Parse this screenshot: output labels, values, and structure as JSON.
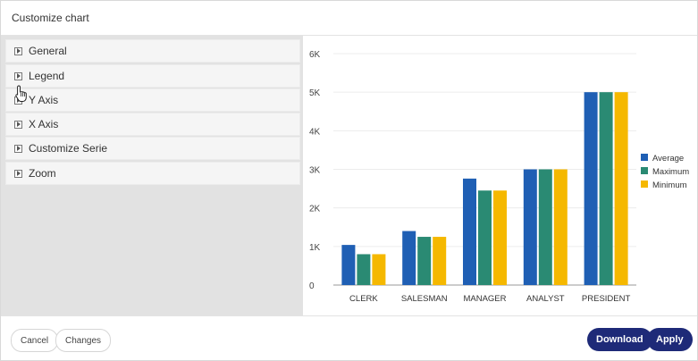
{
  "dialog": {
    "title": "Customize chart"
  },
  "sections": [
    {
      "label": "General",
      "icon": "expand-icon"
    },
    {
      "label": "Legend",
      "icon": "expand-icon"
    },
    {
      "label": "Y Axis",
      "icon": "expand-icon"
    },
    {
      "label": "X Axis",
      "icon": "expand-icon"
    },
    {
      "label": "Customize Serie",
      "icon": "expand-icon"
    },
    {
      "label": "Zoom",
      "icon": "expand-icon"
    }
  ],
  "footer": {
    "cancel_label": "Cancel",
    "changes_label": "Changes",
    "download_label": "Download",
    "apply_label": "Apply"
  },
  "colors": {
    "accent": "#1e2a78",
    "Average": "#1f5fb4",
    "Maximum": "#2a8a73",
    "Minimum": "#f5b800"
  },
  "chart_data": {
    "type": "bar",
    "categories": [
      "CLERK",
      "SALESMAN",
      "MANAGER",
      "ANALYST",
      "PRESIDENT"
    ],
    "series": [
      {
        "name": "Average",
        "values": [
          1040,
          1400,
          2760,
          3000,
          5000
        ]
      },
      {
        "name": "Maximum",
        "values": [
          800,
          1250,
          2450,
          3000,
          5000
        ]
      },
      {
        "name": "Minimum",
        "values": [
          800,
          1250,
          2450,
          3000,
          5000
        ]
      }
    ],
    "yticks": [
      "0",
      "1K",
      "2K",
      "3K",
      "4K",
      "5K",
      "6K"
    ],
    "ylim": [
      0,
      6000
    ],
    "grid": true,
    "legend": "right"
  }
}
